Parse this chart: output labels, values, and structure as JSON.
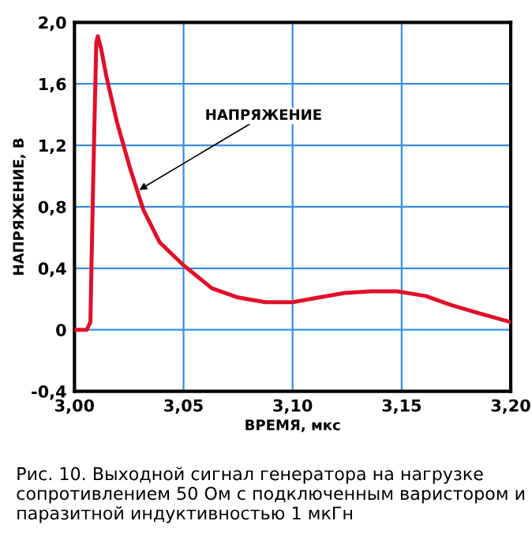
{
  "chart_data": {
    "type": "line",
    "xlabel": "ВРЕМЯ, мкс",
    "ylabel": "НАПРЯЖЕНИЕ, В",
    "x": [
      3.0,
      3.0056,
      3.0073,
      3.0078,
      3.0085,
      3.0092,
      3.01,
      3.0107,
      3.0122,
      3.0146,
      3.0195,
      3.0255,
      3.0316,
      3.039,
      3.05,
      3.063,
      3.075,
      3.0876,
      3.1,
      3.112,
      3.124,
      3.136,
      3.148,
      3.161,
      3.173,
      3.185,
      3.2
    ],
    "series": [
      {
        "color": "#e0102a",
        "values": [
          0,
          0,
          0.05,
          0.42,
          0.91,
          1.37,
          1.87,
          1.91,
          1.83,
          1.65,
          1.35,
          1.05,
          0.78,
          0.57,
          0.42,
          0.27,
          0.21,
          0.18,
          0.18,
          0.21,
          0.24,
          0.25,
          0.25,
          0.22,
          0.16,
          0.11,
          0.05
        ]
      }
    ],
    "xlim": [
      3.0,
      3.2
    ],
    "xticks": [
      {
        "value": 3.0,
        "label": "3,00"
      },
      {
        "value": 3.05,
        "label": "3,05"
      },
      {
        "value": 3.1,
        "label": "3,10"
      },
      {
        "value": 3.15,
        "label": "3,15"
      },
      {
        "value": 3.2,
        "label": "3,20"
      }
    ],
    "ylim": [
      -0.4,
      2.0
    ],
    "yticks": [
      {
        "value": -0.4,
        "label": "-0,4"
      },
      0,
      {
        "value": 0.4,
        "label": "0,4"
      },
      {
        "value": 0.8,
        "label": "0,8"
      },
      {
        "value": 1.2,
        "label": "1,2"
      },
      {
        "value": 1.6,
        "label": "1,6"
      },
      {
        "value": 2.0,
        "label": "2,0"
      }
    ],
    "grid": true,
    "line_style": "solid",
    "marker": "none",
    "annotations": [
      {
        "text": "НАПРЯЖЕНИЕ",
        "x": 3.0297,
        "y": 0.91
      },
      "Рис. 10. Выходной сигнал генератора на нагрузке сопротивлением 50 Ом с подключенным варистором и паразитной индуктивностью 1 мкГн"
    ]
  }
}
